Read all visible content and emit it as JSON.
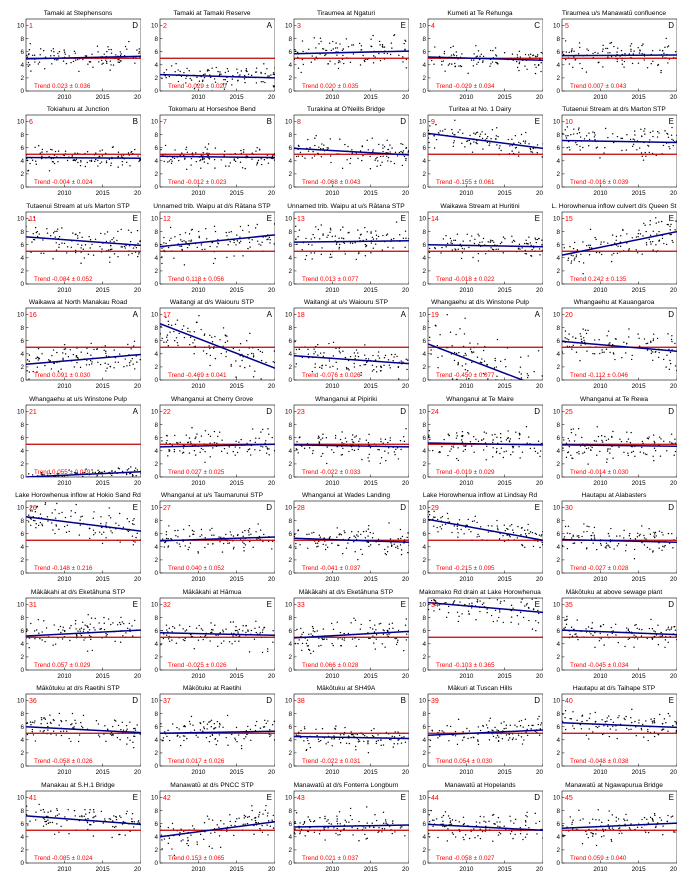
{
  "figure": {
    "reference_line_color": "#c00000",
    "trend_line_color": "#00008b",
    "point_color": "#000000",
    "label_color": "#ff0000",
    "x_ticks": [
      2010,
      2015,
      2020
    ],
    "y_ticks": [
      0,
      2,
      4,
      6,
      8,
      10
    ],
    "xlim": [
      2005,
      2020
    ],
    "ylim": [
      0,
      11
    ],
    "reference_value": 5
  },
  "chart_data": [
    {
      "type": "scatter",
      "num": "1",
      "title": "Tamaki at Stephensons",
      "grade": "D",
      "trend": "Trend 0.023 ± 0.036",
      "x_start": 2005,
      "fit": [
        4.9,
        5.3
      ],
      "band": [
        4.0,
        7.0
      ]
    },
    {
      "type": "scatter",
      "num": "2",
      "title": "Tamaki at Tamaki Reserve",
      "grade": "A",
      "trend": "Trend -0.029 ± 0.020",
      "x_start": 2005,
      "fit": [
        2.5,
        2.0
      ],
      "band": [
        1.0,
        4.0
      ]
    },
    {
      "type": "scatter",
      "num": "3",
      "title": "Tiraumea at Ngaturi",
      "grade": "E",
      "trend": "Trend 0.020 ± 0.035",
      "x_start": 2005,
      "fit": [
        5.7,
        6.1
      ],
      "band": [
        4.0,
        8.5
      ]
    },
    {
      "type": "scatter",
      "num": "4",
      "title": "Kumeti at Te Rehunga",
      "grade": "C",
      "trend": "Trend -0.029 ± 0.034",
      "x_start": 2005,
      "fit": [
        5.2,
        4.7
      ],
      "band": [
        3.0,
        6.5
      ]
    },
    {
      "type": "scatter",
      "num": "5",
      "title": "Tiraumea u/s Manawatū confluence",
      "grade": "D",
      "trend": "Trend 0.007 ± 0.043",
      "x_start": 2005,
      "fit": [
        5.4,
        5.5
      ],
      "band": [
        4.0,
        7.5
      ]
    },
    {
      "type": "scatter",
      "num": "6",
      "title": "Tokiahuru at Junction",
      "grade": "B",
      "trend": "Trend -0.004 ± 0.024",
      "x_start": 2005,
      "fit": [
        4.5,
        4.4
      ],
      "band": [
        3.0,
        6.0
      ]
    },
    {
      "type": "scatter",
      "num": "7",
      "title": "Tokomaru at Horseshoe Bend",
      "grade": "B",
      "trend": "Trend -0.012 ± 0.023",
      "x_start": 2005,
      "fit": [
        4.7,
        4.5
      ],
      "band": [
        3.0,
        6.0
      ]
    },
    {
      "type": "scatter",
      "num": "8",
      "title": "Turakina at O'Neills Bridge",
      "grade": "D",
      "trend": "Trend -0.068 ± 0.043",
      "x_start": 2005,
      "fit": [
        5.9,
        4.9
      ],
      "band": [
        3.5,
        7.5
      ]
    },
    {
      "type": "scatter",
      "num": "9",
      "title": "Turitea at No. 1 Dairy",
      "grade": "E",
      "trend": "Trend -0.155 ± 0.061",
      "x_start": 2005,
      "fit": [
        8.2,
        5.9
      ],
      "band": [
        4.5,
        8.0
      ]
    },
    {
      "type": "scatter",
      "num": "10",
      "title": "Tutaenui Stream at d/s Marton STP",
      "grade": "E",
      "trend": "Trend -0.016 ± 0.039",
      "x_start": 2005,
      "fit": [
        7.1,
        6.8
      ],
      "band": [
        5.0,
        9.0
      ]
    },
    {
      "type": "scatter",
      "num": "11",
      "title": "Tutaenui Stream at u/s Marton STP",
      "grade": "E",
      "trend": "Trend -0.084 ± 0.052",
      "x_start": 2005,
      "fit": [
        7.2,
        5.9
      ],
      "band": [
        4.5,
        9.0
      ]
    },
    {
      "type": "scatter",
      "num": "12",
      "title": "Unnamed trib. Waipu at d/s Rātana STP",
      "grade": "E",
      "trend": "Trend 0.118 ± 0.056",
      "x_start": 2005,
      "fit": [
        5.7,
        7.5
      ],
      "band": [
        4.5,
        9.5
      ]
    },
    {
      "type": "scatter",
      "num": "13",
      "title": "Unnamed trib. Waipu at u/s Rātana STP",
      "grade": "E",
      "trend": "Trend 0.013 ± 0.077",
      "x_start": 2005,
      "fit": [
        6.4,
        6.6
      ],
      "band": [
        4.5,
        9.0
      ]
    },
    {
      "type": "scatter",
      "num": "14",
      "title": "Waikawa Stream at Huritini",
      "grade": "E",
      "trend": "Trend -0.018 ± 0.022",
      "x_start": 2005,
      "fit": [
        6.0,
        5.7
      ],
      "band": [
        4.5,
        7.5
      ]
    },
    {
      "type": "scatter",
      "num": "15",
      "title": "L. Horowhenua inflow culvert d/s Queen St",
      "grade": "E",
      "trend": "Trend 0.242 ± 0.135",
      "x_start": 2005,
      "fit": [
        4.4,
        8.0
      ],
      "band": [
        5.0,
        9.5
      ]
    },
    {
      "type": "scatter",
      "num": "16",
      "title": "Waikawa at North Manakau Road",
      "grade": "A",
      "trend": "Trend 0.091 ± 0.030",
      "x_start": 2005,
      "fit": [
        2.4,
        3.9
      ],
      "band": [
        1.5,
        5.5
      ]
    },
    {
      "type": "scatter",
      "num": "17",
      "title": "Waitangi at d/s Waiouru STP",
      "grade": "A",
      "trend": "Trend -0.469 ± 0.041",
      "x_start": 2005,
      "fit": [
        8.6,
        1.8
      ],
      "band": [
        2.0,
        8.5
      ]
    },
    {
      "type": "scatter",
      "num": "18",
      "title": "Waitangi at u/s Waiouru STP",
      "grade": "A",
      "trend": "Trend -0.076 ± 0.026",
      "x_start": 2005,
      "fit": [
        3.7,
        2.5
      ],
      "band": [
        1.5,
        5.0
      ]
    },
    {
      "type": "scatter",
      "num": "19",
      "title": "Whangaehu at d/s Winstone Pulp",
      "grade": "A",
      "trend": "Trend -0.450 ± 0.077",
      "x_start": 2005,
      "fit": [
        5.5,
        -1.2
      ],
      "band": [
        0.5,
        10.0
      ]
    },
    {
      "type": "scatter",
      "num": "20",
      "title": "Whangaehu at Kauangaroa",
      "grade": "D",
      "trend": "Trend -0.112 ± 0.046",
      "x_start": 2005,
      "fit": [
        5.9,
        4.4
      ],
      "band": [
        3.0,
        8.0
      ]
    },
    {
      "type": "scatter",
      "num": "21",
      "title": "Whangaehu at u/s Winstone Pulp",
      "grade": "A",
      "trend": "Trend 0.055 ± 0.019",
      "x_start": 2005,
      "fit": [
        0.0,
        0.8
      ],
      "band": [
        0.5,
        2.0
      ]
    },
    {
      "type": "scatter",
      "num": "22",
      "title": "Whanganui at Cherry Grove",
      "grade": "D",
      "trend": "Trend 0.027 ± 0.025",
      "x_start": 2005,
      "fit": [
        4.6,
        5.0
      ],
      "band": [
        3.0,
        7.0
      ]
    },
    {
      "type": "scatter",
      "num": "23",
      "title": "Whanganui at Pipiriki",
      "grade": "D",
      "trend": "Trend -0.022 ± 0.033",
      "x_start": 2005,
      "fit": [
        4.9,
        4.6
      ],
      "band": [
        3.0,
        7.0
      ]
    },
    {
      "type": "scatter",
      "num": "24",
      "title": "Whanganui at Te Maire",
      "grade": "D",
      "trend": "Trend -0.019 ± 0.029",
      "x_start": 2005,
      "fit": [
        5.2,
        4.9
      ],
      "band": [
        3.0,
        7.0
      ]
    },
    {
      "type": "scatter",
      "num": "25",
      "title": "Whanganui at Te Rewa",
      "grade": "D",
      "trend": "Trend -0.014 ± 0.030",
      "x_start": 2005,
      "fit": [
        4.9,
        4.7
      ],
      "band": [
        3.0,
        7.0
      ]
    },
    {
      "type": "scatter",
      "num": "26",
      "title": "Lake Horowhenua inflow at Hokio Sand Rd",
      "grade": "E",
      "trend": "Trend -0.148 ± 0.216",
      "x_start": 2005,
      "fit": [
        8.6,
        6.4
      ],
      "band": [
        4.0,
        8.5
      ]
    },
    {
      "type": "scatter",
      "num": "27",
      "title": "Whanganui at u/s Taumarunui STP",
      "grade": "D",
      "trend": "Trend 0.040 ± 0.052",
      "x_start": 2005,
      "fit": [
        4.9,
        5.5
      ],
      "band": [
        3.5,
        7.0
      ]
    },
    {
      "type": "scatter",
      "num": "28",
      "title": "Whanganui at Wades Landing",
      "grade": "D",
      "trend": "Trend -0.041 ± 0.037",
      "x_start": 2005,
      "fit": [
        5.3,
        4.7
      ],
      "band": [
        3.0,
        7.0
      ]
    },
    {
      "type": "scatter",
      "num": "29",
      "title": "Lake Horowhenua inflow at Lindsay Rd",
      "grade": "E",
      "trend": "Trend -0.215 ± 0.095",
      "x_start": 2005,
      "fit": [
        8.2,
        5.0
      ],
      "band": [
        4.5,
        8.0
      ]
    },
    {
      "type": "scatter",
      "num": "30",
      "title": "Hautapu at Alabasters",
      "grade": "D",
      "trend": "Trend -0.027 ± 0.028",
      "x_start": 2005,
      "fit": [
        5.1,
        4.7
      ],
      "band": [
        3.0,
        7.0
      ]
    },
    {
      "type": "scatter",
      "num": "31",
      "title": "Mākākahi at d/s Eketāhuna STP",
      "grade": "E",
      "trend": "Trend 0.057 ± 0.029",
      "x_start": 2005,
      "fit": [
        5.2,
        6.1
      ],
      "band": [
        4.0,
        8.0
      ]
    },
    {
      "type": "scatter",
      "num": "32",
      "title": "Mākākahi at Hāmua",
      "grade": "E",
      "trend": "Trend -0.025 ± 0.026",
      "x_start": 2005,
      "fit": [
        5.7,
        5.3
      ],
      "band": [
        4.0,
        7.5
      ]
    },
    {
      "type": "scatter",
      "num": "33",
      "title": "Mākākahi at d/s Eketāhuna STP",
      "grade": "E",
      "trend": "Trend 0.066 ± 0.028",
      "x_start": 2005,
      "fit": [
        4.9,
        5.9
      ],
      "band": [
        3.5,
        7.5
      ]
    },
    {
      "type": "scatter",
      "num": "34",
      "title": "Makomako Rd drain at Lake Horowhenua",
      "grade": "E",
      "trend": "Trend -0.103 ± 0.365",
      "x_start": 2005,
      "fit": [
        10.3,
        8.8
      ],
      "band": [
        6.0,
        11.0
      ]
    },
    {
      "type": "scatter",
      "num": "35",
      "title": "Mākōtuku at above sewage plant",
      "grade": "D",
      "trend": "Trend -0.045 ± 0.034",
      "x_start": 2005,
      "fit": [
        6.1,
        5.4
      ],
      "band": [
        4.0,
        7.5
      ]
    },
    {
      "type": "scatter",
      "num": "36",
      "title": "Mākōtuku at d/s Raetihi STP",
      "grade": "D",
      "trend": "Trend -0.058 ± 0.026",
      "x_start": 2005,
      "fit": [
        6.0,
        5.1
      ],
      "band": [
        4.0,
        7.5
      ]
    },
    {
      "type": "scatter",
      "num": "37",
      "title": "Mākōtuku at Raetihi",
      "grade": "D",
      "trend": "Trend 0.017 ± 0.026",
      "x_start": 2005,
      "fit": [
        5.0,
        5.3
      ],
      "band": [
        3.5,
        7.0
      ]
    },
    {
      "type": "scatter",
      "num": "38",
      "title": "Mākōtuku at SH49A",
      "grade": "B",
      "trend": "Trend -0.022 ± 0.031",
      "x_start": 2005,
      "fit": [
        4.5,
        4.2
      ],
      "band": [
        3.0,
        6.0
      ]
    },
    {
      "type": "scatter",
      "num": "39",
      "title": "Mākuri at Tuscan Hills",
      "grade": "D",
      "trend": "Trend 0.054 ± 0.030",
      "x_start": 2005,
      "fit": [
        4.7,
        5.5
      ],
      "band": [
        3.5,
        7.0
      ]
    },
    {
      "type": "scatter",
      "num": "40",
      "title": "Hautapu at d/s Taihape STP",
      "grade": "E",
      "trend": "Trend -0.048 ± 0.038",
      "x_start": 2005,
      "fit": [
        6.6,
        5.9
      ],
      "band": [
        4.5,
        8.0
      ]
    },
    {
      "type": "scatter",
      "num": "41",
      "title": "Manakau at S.H.1 Bridge",
      "grade": "E",
      "trend": "Trend -0.085 ± 0.024",
      "x_start": 2005,
      "fit": [
        7.2,
        5.9
      ],
      "band": [
        4.5,
        8.5
      ]
    },
    {
      "type": "scatter",
      "num": "42",
      "title": "Manawatū at d/s PNCC STP",
      "grade": "E",
      "trend": "Trend 0.153 ± 0.065",
      "x_start": 2005,
      "fit": [
        4.0,
        6.3
      ],
      "band": [
        4.0,
        8.0
      ]
    },
    {
      "type": "scatter",
      "num": "43",
      "title": "Manawatū at d/s Fonterra Longburn",
      "grade": "E",
      "trend": "Trend 0.021 ± 0.037",
      "x_start": 2005,
      "fit": [
        5.5,
        5.8
      ],
      "band": [
        4.0,
        8.0
      ]
    },
    {
      "type": "scatter",
      "num": "44",
      "title": "Manawatū at Hopelands",
      "grade": "D",
      "trend": "Trend -0.058 ± 0.027",
      "x_start": 2005,
      "fit": [
        5.9,
        5.0
      ],
      "band": [
        3.5,
        7.5
      ]
    },
    {
      "type": "scatter",
      "num": "45",
      "title": "Manawatū at Ngawapurua Bridge",
      "grade": "E",
      "trend": "Trend 0.059 ± 0.040",
      "x_start": 2005,
      "fit": [
        5.3,
        6.1
      ],
      "band": [
        4.0,
        8.0
      ]
    }
  ]
}
